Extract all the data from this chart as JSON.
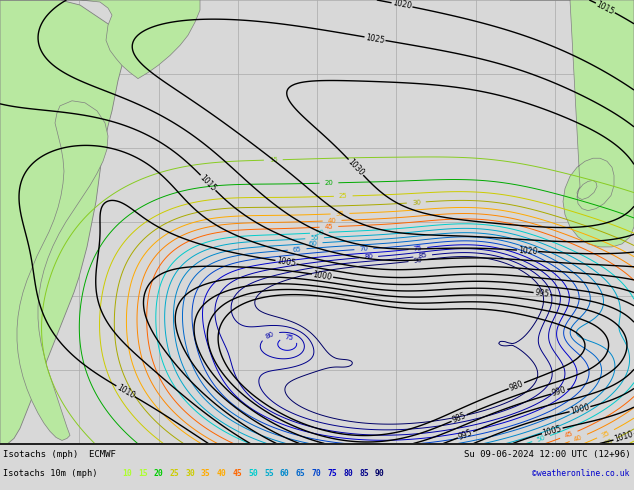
{
  "title_line1": "Isotachs (mph)  ECMWF",
  "title_date": "Su 09-06-2024 12:00 UTC (12+96)",
  "legend_label": "Isotachs 10m (mph)",
  "copyright": "©weatheronline.co.uk",
  "legend_values": [
    "10",
    "15",
    "20",
    "25",
    "30",
    "35",
    "40",
    "45",
    "50",
    "55",
    "60",
    "65",
    "70",
    "75",
    "80",
    "85",
    "90"
  ],
  "legend_colors": [
    "#adff2f",
    "#adff2f",
    "#00cc00",
    "#cccc00",
    "#cccc00",
    "#ffaa00",
    "#ffaa00",
    "#ff6600",
    "#00cccc",
    "#00aacc",
    "#0088cc",
    "#0066cc",
    "#0044cc",
    "#0000cc",
    "#0000aa",
    "#000088",
    "#000066"
  ],
  "isotach_line_colors": {
    "10": "#adff2f",
    "15": "#adff2f",
    "20": "#00cc00",
    "25": "#cccc00",
    "30": "#cccc00",
    "35": "#ffaa00",
    "40": "#ffaa00",
    "45": "#ff6600",
    "50": "#00cccc",
    "55": "#00aacc",
    "60": "#0088cc",
    "65": "#0066cc",
    "70": "#0044cc",
    "75": "#0000cc",
    "80": "#0000aa",
    "85": "#000088",
    "90": "#000066"
  },
  "bg_color": "#d8d8d8",
  "ocean_color": "#d4d4d4",
  "land_color_bright": "#b8e8a0",
  "land_color_mid": "#c8e8b0",
  "land_color_dark": "#90c878",
  "land_edge_color": "#808080",
  "grid_color": "#aaaaaa",
  "isobar_color": "#000000",
  "figsize": [
    6.34,
    4.9
  ],
  "dpi": 100,
  "bottom_bg": "#e8e8e8"
}
